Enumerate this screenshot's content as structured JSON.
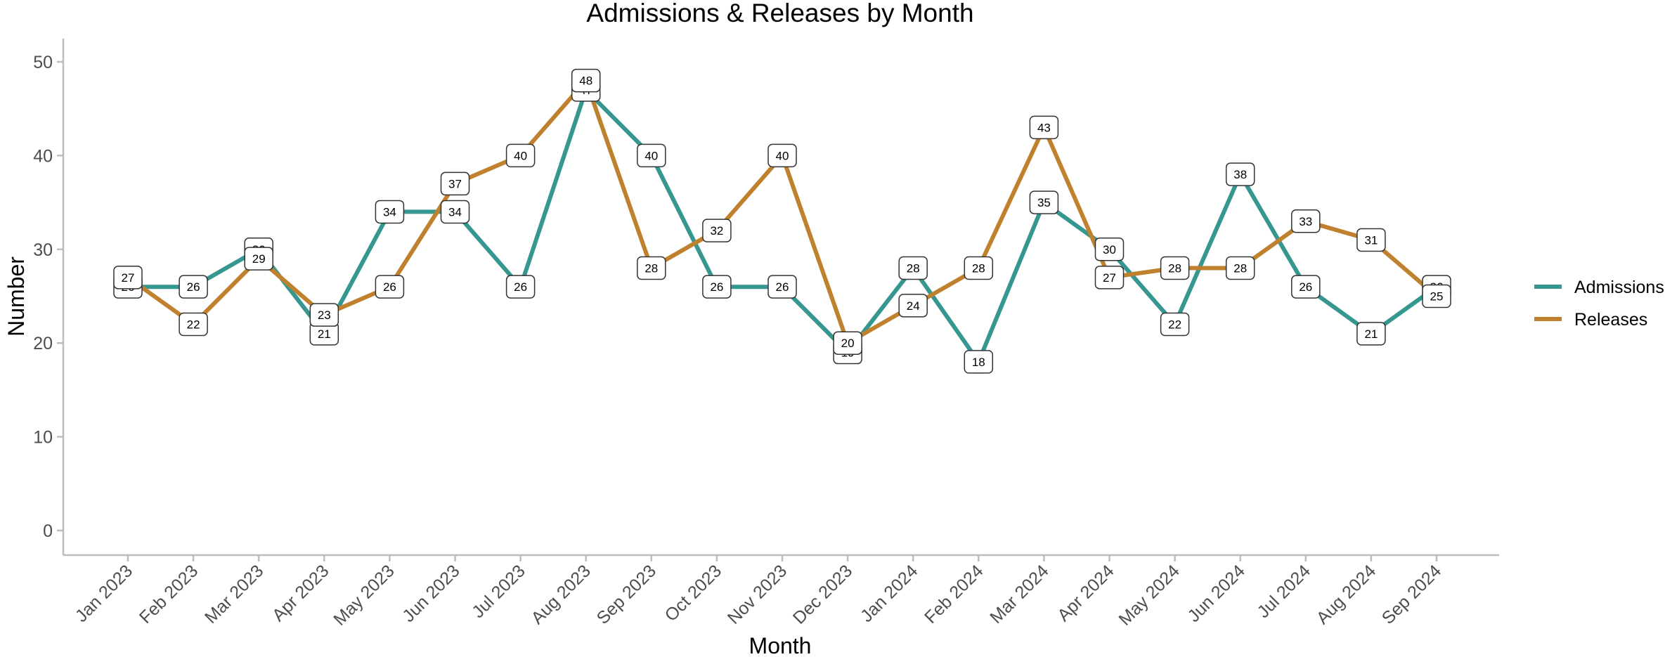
{
  "chart_data": {
    "type": "line",
    "title": "Admissions & Releases by Month",
    "xlabel": "Month",
    "ylabel": "Number",
    "categories": [
      "Jan 2023",
      "Feb 2023",
      "Mar 2023",
      "Apr 2023",
      "May 2023",
      "Jun 2023",
      "Jul 2023",
      "Aug 2023",
      "Sep 2023",
      "Oct 2023",
      "Nov 2023",
      "Dec 2023",
      "Jan 2024",
      "Feb 2024",
      "Mar 2024",
      "Apr 2024",
      "May 2024",
      "Jun 2024",
      "Jul 2024",
      "Aug 2024",
      "Sep 2024"
    ],
    "ylim": [
      0,
      52.5
    ],
    "yticks": [
      0,
      10,
      20,
      30,
      40,
      50
    ],
    "grid": false,
    "legend_position": "right",
    "series": [
      {
        "name": "Admissions",
        "color": "#35978f",
        "values": [
          26,
          26,
          30,
          21,
          34,
          34,
          26,
          47,
          40,
          26,
          26,
          19,
          28,
          18,
          35,
          30,
          22,
          38,
          26,
          21,
          26
        ]
      },
      {
        "name": "Releases",
        "color": "#bf812d",
        "values": [
          27,
          22,
          29,
          23,
          26,
          37,
          40,
          48,
          28,
          32,
          40,
          20,
          24,
          28,
          43,
          27,
          28,
          28,
          33,
          31,
          25
        ]
      }
    ]
  }
}
